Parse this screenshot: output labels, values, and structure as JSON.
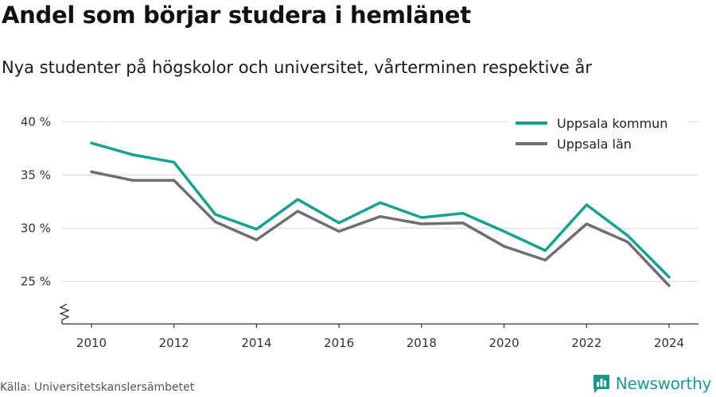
{
  "header": {
    "title": "Andel som börjar studera i hemlänet",
    "subtitle": "Nya studenter på högskolor och universitet, vårterminen respektive år"
  },
  "footer": {
    "source": "Källa: Universitetskanslersämbetet",
    "brand": "Newsworthy",
    "brand_icon": "bar-chart-logo-icon",
    "brand_color": "#159a8c"
  },
  "chart_data": {
    "type": "line",
    "title": "Andel som börjar studera i hemlänet",
    "subtitle": "Nya studenter på högskolor och universitet, vårterminen respektive år",
    "x": [
      2010,
      2011,
      2012,
      2013,
      2014,
      2015,
      2016,
      2017,
      2018,
      2019,
      2020,
      2021,
      2022,
      2023,
      2024
    ],
    "x_ticks": [
      2010,
      2012,
      2014,
      2016,
      2018,
      2020,
      2022,
      2024
    ],
    "x_tick_labels": [
      "2010",
      "2012",
      "2014",
      "2016",
      "2018",
      "2020",
      "2022",
      "2024"
    ],
    "y_ticks": [
      25,
      30,
      35,
      40
    ],
    "y_tick_labels": [
      "25 %",
      "30 %",
      "35 %",
      "40 %"
    ],
    "ylim": [
      21,
      41
    ],
    "y_axis_break": true,
    "grid": true,
    "legend_position": "top-right",
    "series": [
      {
        "name": "Uppsala kommun",
        "color": "#14a393",
        "values": [
          38.0,
          36.9,
          36.2,
          31.3,
          29.9,
          32.7,
          30.5,
          32.4,
          31.0,
          31.4,
          29.7,
          27.9,
          32.2,
          29.3,
          25.4
        ]
      },
      {
        "name": "Uppsala län",
        "color": "#6e6e73",
        "values": [
          35.3,
          34.5,
          34.5,
          30.6,
          28.9,
          31.6,
          29.7,
          31.1,
          30.4,
          30.5,
          28.3,
          27.0,
          30.4,
          28.7,
          24.6
        ]
      }
    ]
  }
}
